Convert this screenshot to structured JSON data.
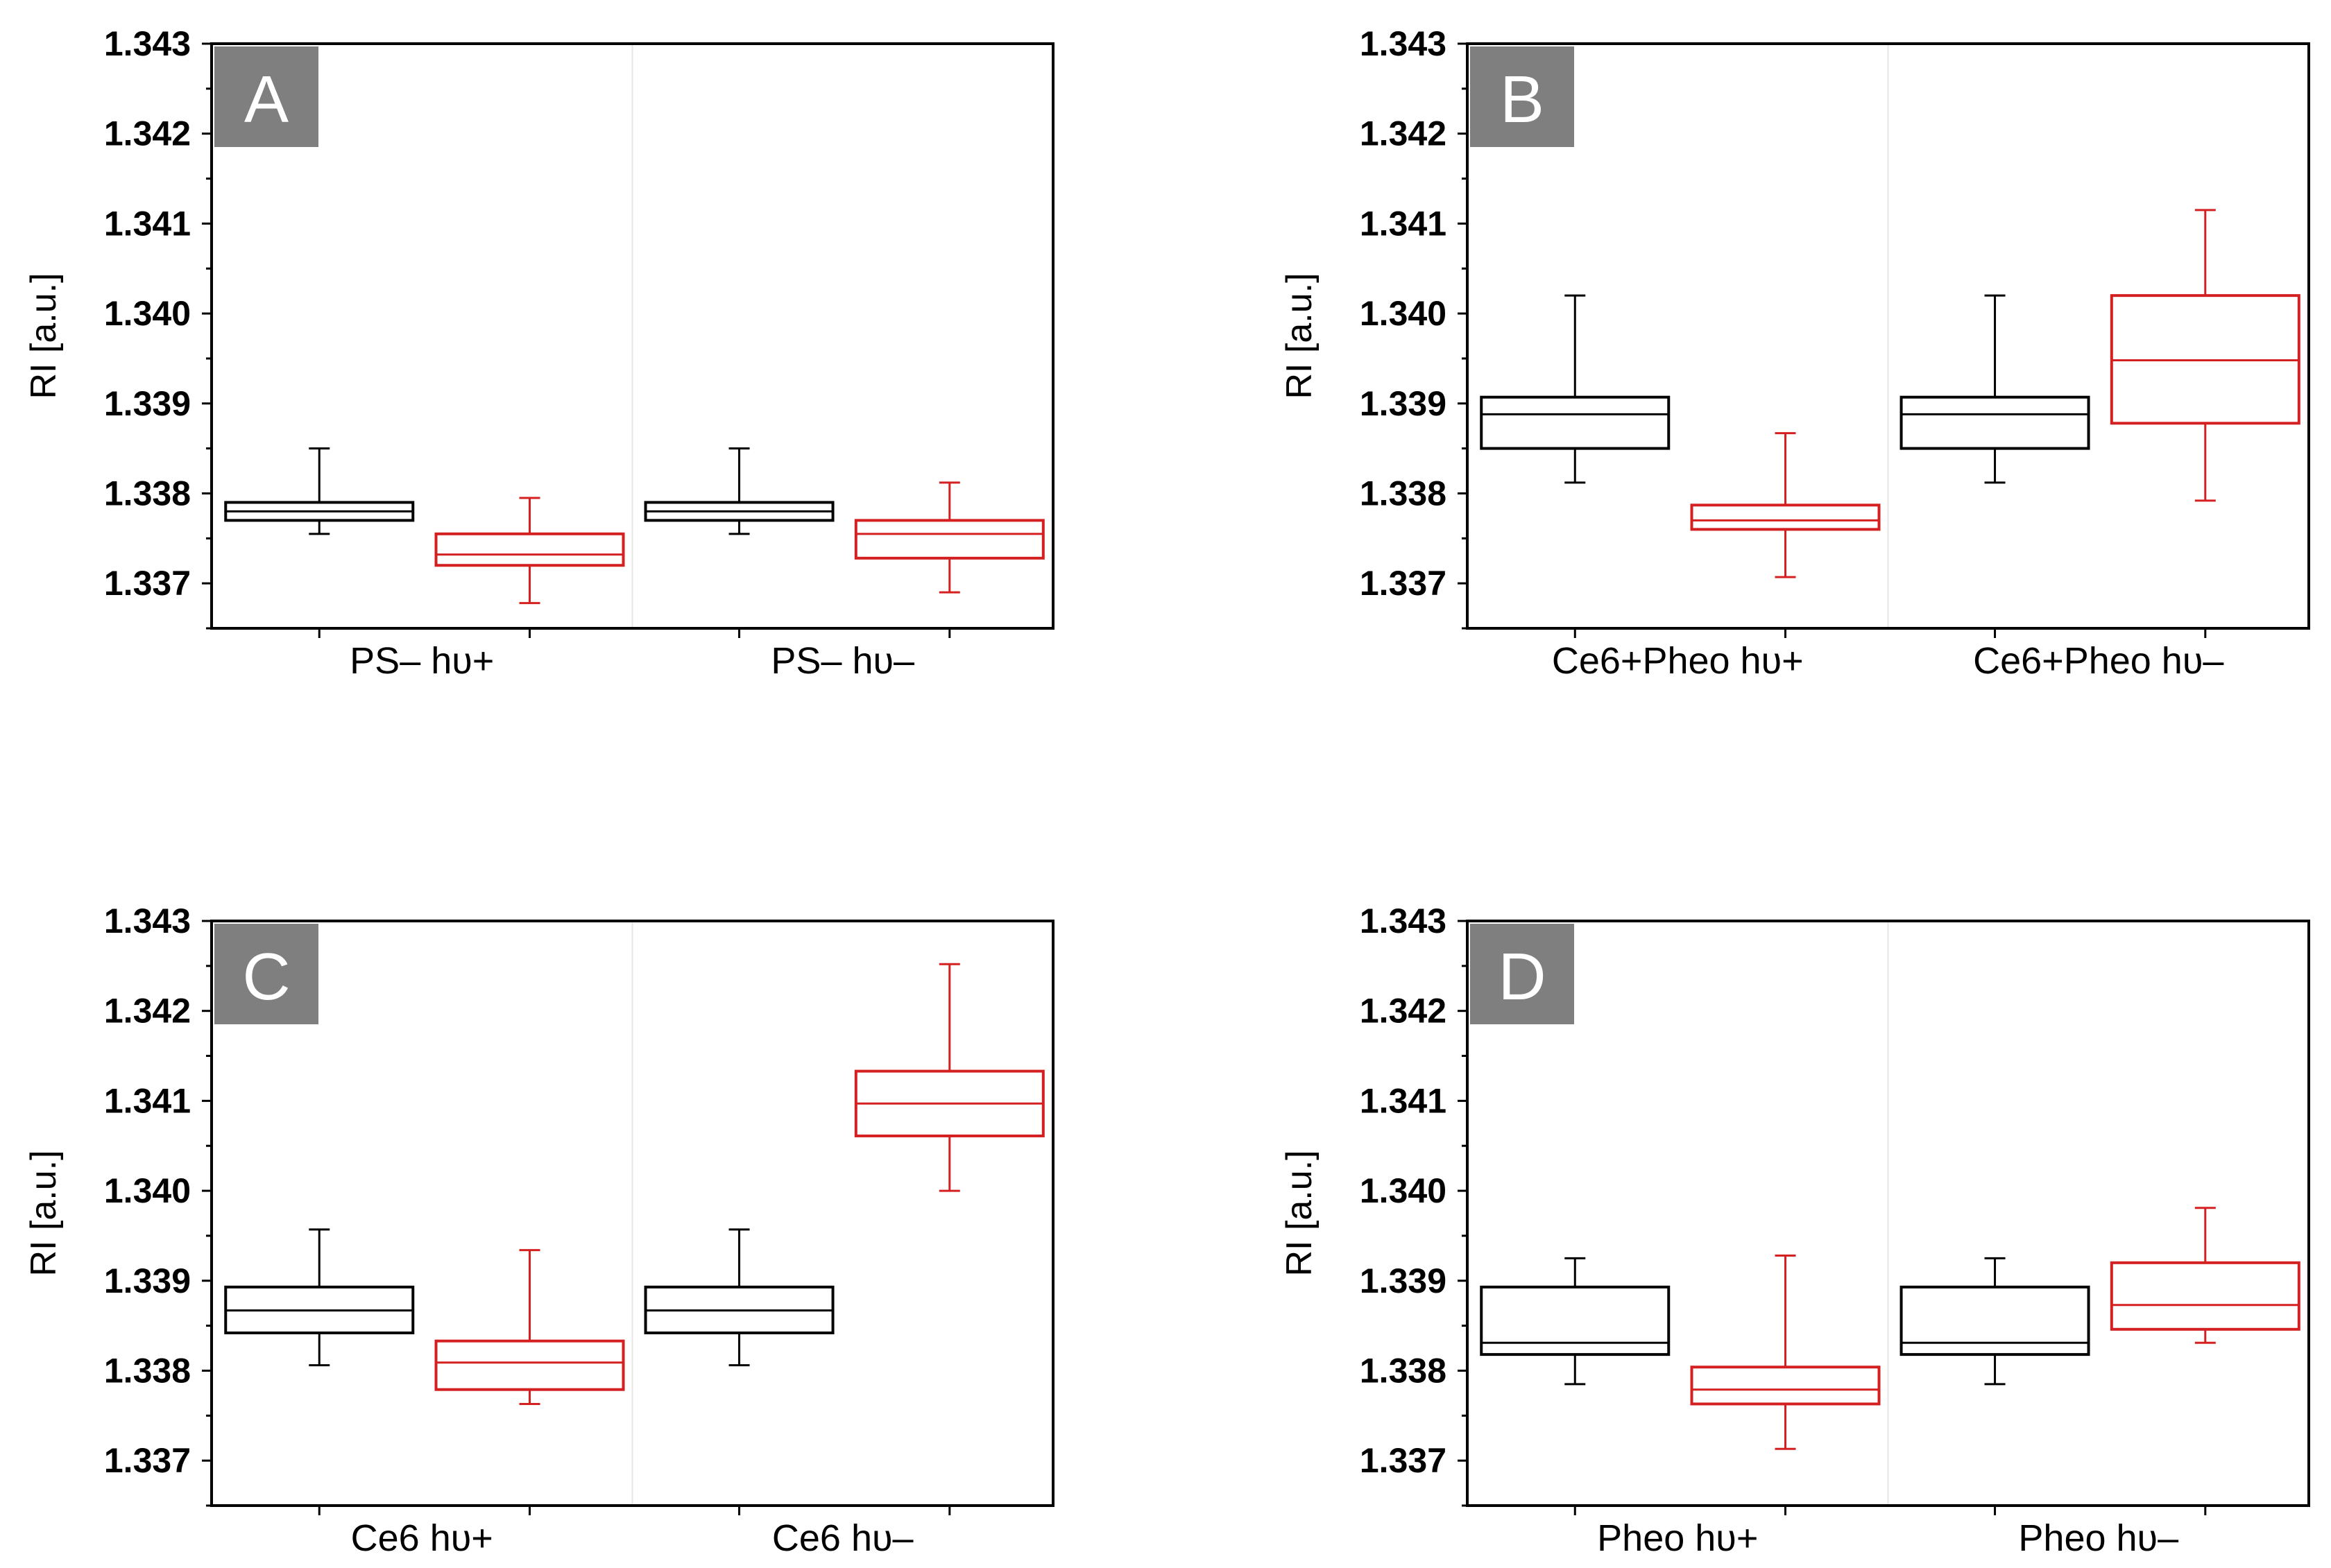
{
  "colors": {
    "control": "#000000",
    "treated": "#d42020",
    "panel_label_bg": "#7f7f7f",
    "panel_label_fg": "#ffffff"
  },
  "common": {
    "ylabel": "RI [a.u.]",
    "ylim": [
      1.3365,
      1.343
    ],
    "yticks": [
      "1.337",
      "1.338",
      "1.339",
      "1.340",
      "1.341",
      "1.342",
      "1.343"
    ]
  },
  "chart_data": [
    {
      "type": "box",
      "panel_label": "A",
      "ylabel": "RI [a.u.]",
      "ylim": [
        1.3365,
        1.343
      ],
      "categories": [
        "PS– hυ+",
        "PS– hυ–"
      ],
      "boxes": [
        {
          "group": 0,
          "series": "control",
          "whisker_low": 1.33755,
          "q1": 1.3377,
          "median": 1.3378,
          "q3": 1.3379,
          "whisker_high": 1.3385
        },
        {
          "group": 0,
          "series": "treated",
          "whisker_low": 1.33678,
          "q1": 1.3372,
          "median": 1.33732,
          "q3": 1.33755,
          "whisker_high": 1.33795
        },
        {
          "group": 1,
          "series": "control",
          "whisker_low": 1.33755,
          "q1": 1.3377,
          "median": 1.3378,
          "q3": 1.3379,
          "whisker_high": 1.3385
        },
        {
          "group": 1,
          "series": "treated",
          "whisker_low": 1.3369,
          "q1": 1.33728,
          "median": 1.33755,
          "q3": 1.3377,
          "whisker_high": 1.33812
        }
      ]
    },
    {
      "type": "box",
      "panel_label": "B",
      "ylabel": "RI [a.u.]",
      "ylim": [
        1.3365,
        1.343
      ],
      "categories": [
        "Ce6+Pheo hυ+",
        "Ce6+Pheo hυ–"
      ],
      "boxes": [
        {
          "group": 0,
          "series": "control",
          "whisker_low": 1.33812,
          "q1": 1.3385,
          "median": 1.33888,
          "q3": 1.33907,
          "whisker_high": 1.3402
        },
        {
          "group": 0,
          "series": "treated",
          "whisker_low": 1.33707,
          "q1": 1.3376,
          "median": 1.3377,
          "q3": 1.33787,
          "whisker_high": 1.33867
        },
        {
          "group": 1,
          "series": "control",
          "whisker_low": 1.33812,
          "q1": 1.3385,
          "median": 1.33888,
          "q3": 1.33907,
          "whisker_high": 1.3402
        },
        {
          "group": 1,
          "series": "treated",
          "whisker_low": 1.33792,
          "q1": 1.33878,
          "median": 1.33948,
          "q3": 1.3402,
          "whisker_high": 1.34115
        }
      ]
    },
    {
      "type": "box",
      "panel_label": "C",
      "ylabel": "RI [a.u.]",
      "ylim": [
        1.3365,
        1.343
      ],
      "categories": [
        "Ce6 hυ+",
        "Ce6 hυ–"
      ],
      "boxes": [
        {
          "group": 0,
          "series": "control",
          "whisker_low": 1.33806,
          "q1": 1.33842,
          "median": 1.33867,
          "q3": 1.33893,
          "whisker_high": 1.33957
        },
        {
          "group": 0,
          "series": "treated",
          "whisker_low": 1.33763,
          "q1": 1.33779,
          "median": 1.33809,
          "q3": 1.33833,
          "whisker_high": 1.33934
        },
        {
          "group": 1,
          "series": "control",
          "whisker_low": 1.33806,
          "q1": 1.33842,
          "median": 1.33867,
          "q3": 1.33893,
          "whisker_high": 1.33957
        },
        {
          "group": 1,
          "series": "treated",
          "whisker_low": 1.34,
          "q1": 1.34061,
          "median": 1.34097,
          "q3": 1.34133,
          "whisker_high": 1.34252
        }
      ]
    },
    {
      "type": "box",
      "panel_label": "D",
      "ylabel": "RI [a.u.]",
      "ylim": [
        1.3365,
        1.343
      ],
      "categories": [
        "Pheo hυ+",
        "Pheo hυ–"
      ],
      "boxes": [
        {
          "group": 0,
          "series": "control",
          "whisker_low": 1.33785,
          "q1": 1.33818,
          "median": 1.33831,
          "q3": 1.33893,
          "whisker_high": 1.33925
        },
        {
          "group": 0,
          "series": "treated",
          "whisker_low": 1.33713,
          "q1": 1.33763,
          "median": 1.33779,
          "q3": 1.33804,
          "whisker_high": 1.33928
        },
        {
          "group": 1,
          "series": "control",
          "whisker_low": 1.33785,
          "q1": 1.33818,
          "median": 1.33831,
          "q3": 1.33893,
          "whisker_high": 1.33925
        },
        {
          "group": 1,
          "series": "treated",
          "whisker_low": 1.33831,
          "q1": 1.33846,
          "median": 1.33873,
          "q3": 1.3392,
          "whisker_high": 1.33981
        }
      ]
    }
  ]
}
